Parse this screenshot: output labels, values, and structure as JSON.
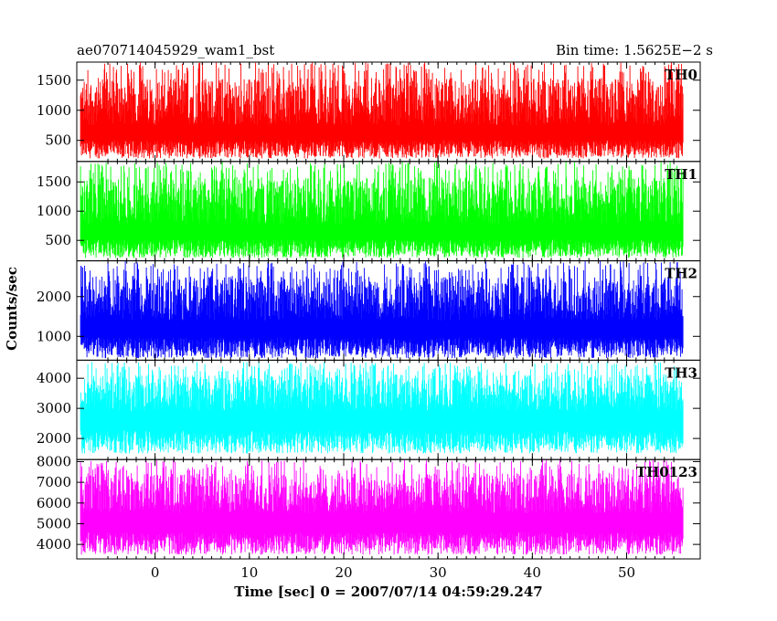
{
  "header": {
    "title": "ae070714045929_wam1_bst",
    "bin_time": "Bin time: 1.5625E−2 s"
  },
  "chart_data": {
    "type": "line",
    "xlabel": "Time [sec] 0 = 2007/07/14 04:59:29.247",
    "ylabel": "Counts/sec",
    "xlim": [
      -8.3,
      57.8
    ],
    "xticks": [
      0,
      10,
      20,
      30,
      40,
      50
    ],
    "x_start": -7.9,
    "x_end": 56.0,
    "bin_time": 0.015625,
    "grid": false,
    "series": [
      {
        "name": "TH0",
        "color": "#ff0000",
        "ylim": [
          150,
          1800
        ],
        "yticks": [
          500,
          1000,
          1500
        ],
        "mean": 750,
        "min": 200,
        "max": 1800
      },
      {
        "name": "TH1",
        "color": "#00ff00",
        "ylim": [
          150,
          1850
        ],
        "yticks": [
          500,
          1000,
          1500
        ],
        "mean": 780,
        "min": 200,
        "max": 1850
      },
      {
        "name": "TH2",
        "color": "#0000ff",
        "ylim": [
          400,
          2900
        ],
        "yticks": [
          1000,
          2000
        ],
        "mean": 1400,
        "min": 450,
        "max": 2900
      },
      {
        "name": "TH3",
        "color": "#00ffff",
        "ylim": [
          1300,
          4600
        ],
        "yticks": [
          2000,
          3000,
          4000
        ],
        "mean": 2900,
        "min": 1500,
        "max": 4550
      },
      {
        "name": "TH0123",
        "color": "#ff00ff",
        "ylim": [
          3300,
          8100
        ],
        "yticks": [
          4000,
          5000,
          6000,
          7000,
          8000
        ],
        "mean": 5500,
        "min": 3500,
        "max": 8100
      }
    ]
  }
}
